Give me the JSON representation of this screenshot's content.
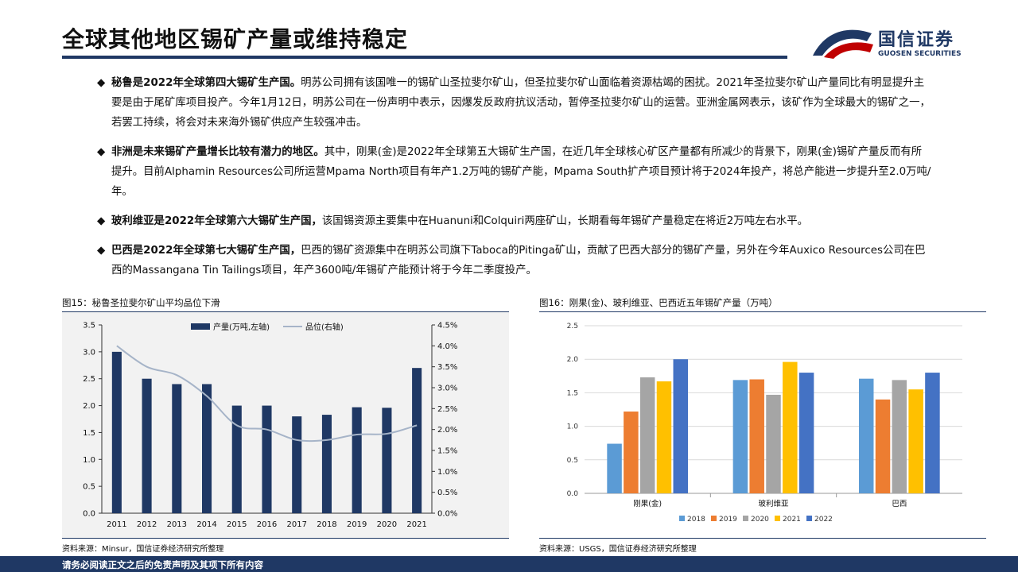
{
  "header": {
    "title": "全球其他地区锡矿产量或维持稳定",
    "logo_cn": "国信证券",
    "logo_en": "GUOSEN SECURITIES"
  },
  "bullets": [
    {
      "marker": "◆",
      "bold": "秘鲁是2022年全球第四大锡矿生产国。",
      "text": "明苏公司拥有该国唯一的锡矿山圣拉斐尔矿山，但圣拉斐尔矿山面临着资源枯竭的困扰。2021年圣拉斐尔矿山产量同比有明显提升主要是由于尾矿库项目投产。今年1月12日，明苏公司在一份声明中表示，因爆发反政府抗议活动，暂停圣拉斐尔矿山的运营。亚洲金属网表示，该矿作为全球最大的锡矿之一，若罢工持续，将会对未来海外锡矿供应产生较强冲击。"
    },
    {
      "marker": "◆",
      "bold": "非洲是未来锡矿产量增长比较有潜力的地区。",
      "text": "其中，刚果(金)是2022年全球第五大锡矿生产国，在近几年全球核心矿区产量都有所减少的背景下，刚果(金)锡矿产量反而有所提升。目前Alphamin Resources公司所运营Mpama North项目有年产1.2万吨的锡矿产能，Mpama South扩产项目预计将于2024年投产，将总产能进一步提升至2.0万吨/年。"
    },
    {
      "marker": "◆",
      "bold": "玻利维亚是2022年全球第六大锡矿生产国，",
      "text": "该国锡资源主要集中在Huanuni和Colquiri两座矿山，长期看每年锡矿产量稳定在将近2万吨左右水平。"
    },
    {
      "marker": "◆",
      "bold": "巴西是2022年全球第七大锡矿生产国，",
      "text": "巴西的锡矿资源集中在明苏公司旗下Taboca的Pitinga矿山，贡献了巴西大部分的锡矿产量，另外在今年Auxico Resources公司在巴西的Massangana Tin Tailings项目，年产3600吨/年锡矿产能预计将于今年二季度投产。"
    }
  ],
  "fig15": {
    "title": "图15：秘鲁圣拉斐尔矿山平均品位下滑",
    "source": "资料来源：Minsur，国信证券经济研究所整理"
  },
  "fig16": {
    "title": "图16：刚果(金)、玻利维亚、巴西近五年锡矿产量（万吨）",
    "source": "资料来源：USGS，国信证券经济研究所整理"
  },
  "footer": {
    "disclaimer": "请务必阅读正文之后的免责声明及其项下所有内容"
  },
  "chart_data": [
    {
      "type": "bar",
      "categories": [
        "2011",
        "2012",
        "2013",
        "2014",
        "2015",
        "2016",
        "2017",
        "2018",
        "2019",
        "2020",
        "2021"
      ],
      "series": [
        {
          "name": "产量(万吨,左轴)",
          "type": "bar",
          "axis": "left",
          "color": "#1f3864",
          "values": [
            3.0,
            2.5,
            2.4,
            2.4,
            2.0,
            2.0,
            1.8,
            1.83,
            1.97,
            1.96,
            2.7
          ]
        },
        {
          "name": "品位(右轴)",
          "type": "line",
          "axis": "right",
          "color": "#a6b4c8",
          "values": [
            4.0,
            3.5,
            3.3,
            2.8,
            2.1,
            2.0,
            1.75,
            1.75,
            1.88,
            1.9,
            2.1
          ]
        }
      ],
      "ylim_left": [
        0,
        3.5
      ],
      "yticks_left": [
        "0.0",
        "0.5",
        "1.0",
        "1.5",
        "2.0",
        "2.5",
        "3.0",
        "3.5"
      ],
      "ylim_right": [
        0,
        4.5
      ],
      "yticks_right": [
        "0.0%",
        "0.5%",
        "1.0%",
        "1.5%",
        "2.0%",
        "2.5%",
        "3.0%",
        "3.5%",
        "4.0%",
        "4.5%"
      ],
      "legend": "top-center"
    },
    {
      "type": "bar",
      "categories": [
        "刚果(金)",
        "玻利维亚",
        "巴西"
      ],
      "series": [
        {
          "name": "2018",
          "color": "#5b9bd5",
          "values": [
            0.74,
            1.69,
            1.71
          ]
        },
        {
          "name": "2019",
          "color": "#ed7d31",
          "values": [
            1.22,
            1.7,
            1.4
          ]
        },
        {
          "name": "2020",
          "color": "#a5a5a5",
          "values": [
            1.73,
            1.47,
            1.69
          ]
        },
        {
          "name": "2021",
          "color": "#ffc000",
          "values": [
            1.67,
            1.96,
            1.55
          ]
        },
        {
          "name": "2022",
          "color": "#4472c4",
          "values": [
            2.0,
            1.8,
            1.8
          ]
        }
      ],
      "ylim": [
        0,
        2.5
      ],
      "yticks": [
        "0.0",
        "0.5",
        "1.0",
        "1.5",
        "2.0",
        "2.5"
      ],
      "legend": "bottom"
    }
  ]
}
